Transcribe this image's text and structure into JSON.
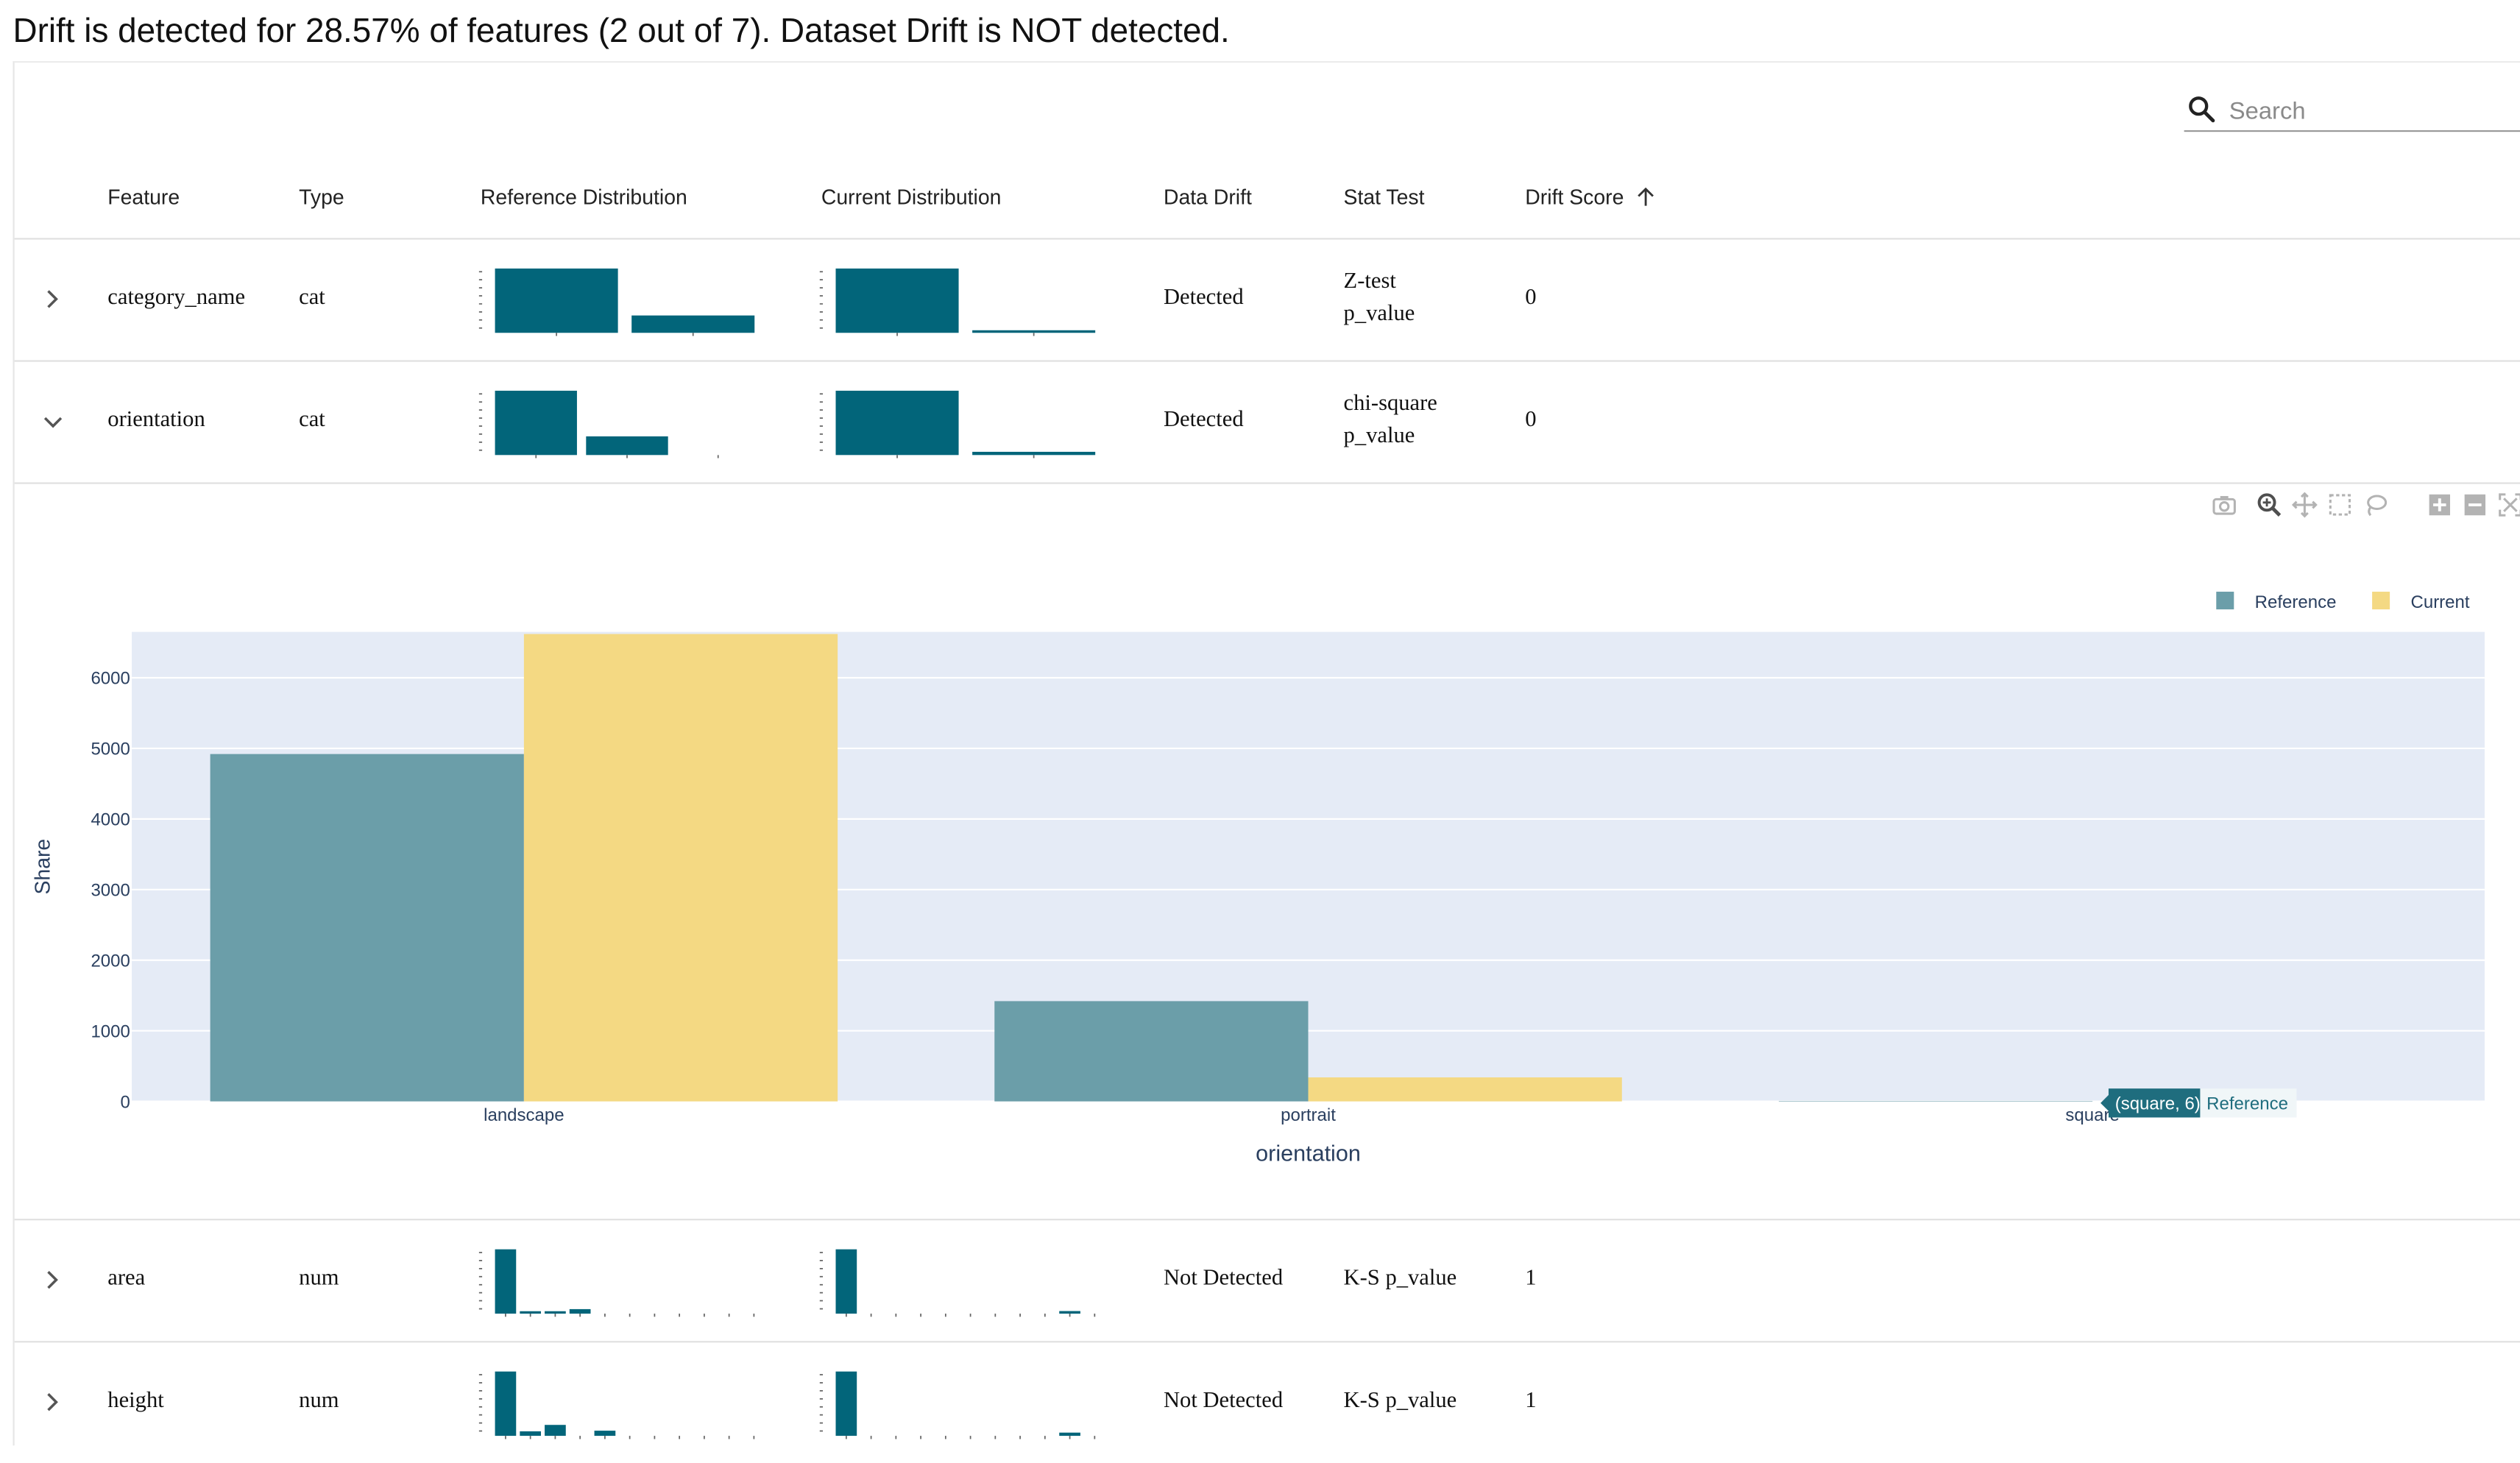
{
  "summary": "Drift is detected for 28.57% of features (2 out of 7). Dataset Drift is NOT detected.",
  "search": {
    "placeholder": "Search",
    "value": "",
    "icon": "search-icon"
  },
  "headers": {
    "feature": "Feature",
    "type": "Type",
    "reference": "Reference Distribution",
    "current": "Current Distribution",
    "drift": "Data Drift",
    "stat": "Stat Test",
    "score": "Drift Score"
  },
  "colors": {
    "spark": "#02657a",
    "reference": "#6b9ea9",
    "current": "#f4d983",
    "plot_bg": "#e5ebf6",
    "axis_text": "#2a3f5f"
  },
  "rows": [
    {
      "feature": "category_name",
      "type": "cat",
      "drift": "Detected",
      "stat_line1": "Z-test",
      "stat_line2": "p_value",
      "score": "0",
      "expanded": false,
      "ref_hist": [
        1.0,
        0.27
      ],
      "cur_hist": [
        1.0,
        0.04
      ]
    },
    {
      "feature": "orientation",
      "type": "cat",
      "drift": "Detected",
      "stat_line1": "chi-square",
      "stat_line2": "p_value",
      "score": "0",
      "expanded": true,
      "ref_hist": [
        1.0,
        0.29,
        0.0
      ],
      "cur_hist": [
        1.0,
        0.05
      ]
    },
    {
      "feature": "area",
      "type": "num",
      "drift": "Not Detected",
      "stat": "K-S p_value",
      "score": "1",
      "expanded": false,
      "ref_hist": [
        1.0,
        0.03,
        0.02,
        0.07,
        0,
        0,
        0,
        0,
        0,
        0,
        0
      ],
      "cur_hist": [
        1.0,
        0,
        0,
        0,
        0,
        0,
        0,
        0,
        0,
        0.04,
        0
      ]
    },
    {
      "feature": "height",
      "type": "num",
      "drift": "Not Detected",
      "stat": "K-S p_value",
      "score": "1",
      "expanded": false,
      "ref_hist": [
        1.0,
        0.07,
        0.17,
        0,
        0.08,
        0,
        0,
        0,
        0,
        0,
        0
      ],
      "cur_hist": [
        1.0,
        0,
        0,
        0,
        0,
        0,
        0,
        0,
        0,
        0.05,
        0
      ]
    }
  ],
  "chart_data": {
    "type": "bar",
    "categories": [
      "landscape",
      "portrait",
      "square"
    ],
    "series": [
      {
        "name": "Reference",
        "values": [
          4920,
          1420,
          6
        ]
      },
      {
        "name": "Current",
        "values": [
          6620,
          340,
          0
        ]
      }
    ],
    "xlabel": "orientation",
    "ylabel": "Share",
    "ylim": [
      0,
      6650
    ],
    "yticks": [
      "0",
      "1000",
      "2000",
      "3000",
      "4000",
      "5000",
      "6000"
    ],
    "grid": true,
    "legend": "top-right",
    "hover": {
      "text": "(square, 6)",
      "series": "Reference"
    }
  }
}
